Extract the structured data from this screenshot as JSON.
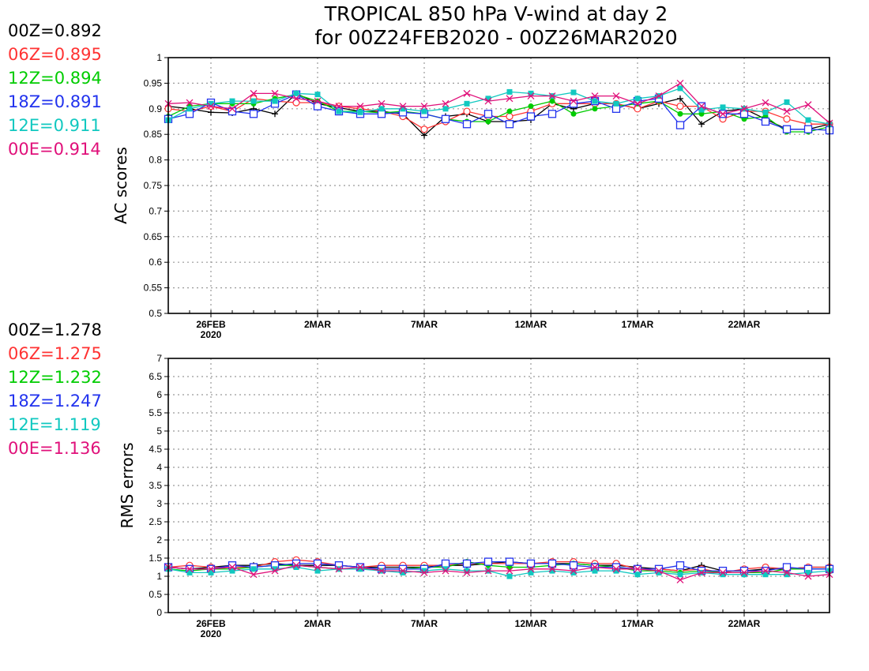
{
  "title_line1": "TROPICAL 850 hPa V-wind at day 2",
  "title_line2": "for 00Z24FEB2020 - 00Z26MAR2020",
  "colors": {
    "00Z": "#000000",
    "06Z": "#ff3333",
    "12Z": "#00cc00",
    "18Z": "#2233ee",
    "12E": "#11c8c0",
    "00E": "#e0107a"
  },
  "ac_scores": [
    {
      "label": "00Z=0.892",
      "color": "#000000"
    },
    {
      "label": "06Z=0.895",
      "color": "#ff3333"
    },
    {
      "label": "12Z=0.894",
      "color": "#00cc00"
    },
    {
      "label": "18Z=0.891",
      "color": "#2233ee"
    },
    {
      "label": "12E=0.911",
      "color": "#11c8c0"
    },
    {
      "label": "00E=0.914",
      "color": "#e0107a"
    }
  ],
  "rms_scores": [
    {
      "label": "00Z=1.278",
      "color": "#000000"
    },
    {
      "label": "06Z=1.275",
      "color": "#ff3333"
    },
    {
      "label": "12Z=1.232",
      "color": "#00cc00"
    },
    {
      "label": "18Z=1.247",
      "color": "#2233ee"
    },
    {
      "label": "12E=1.119",
      "color": "#11c8c0"
    },
    {
      "label": "00E=1.136",
      "color": "#e0107a"
    }
  ],
  "chart_data": [
    {
      "type": "line",
      "ylabel": "AC scores",
      "ylim": [
        0.5,
        1.0
      ],
      "yticks": [
        "0.5",
        "0.55",
        "0.6",
        "0.65",
        "0.7",
        "0.75",
        "0.8",
        "0.85",
        "0.9",
        "0.95",
        "1"
      ],
      "xlim": [
        24,
        55
      ],
      "xticks": [
        {
          "x": 26,
          "label": "26FEB",
          "sub": "2020"
        },
        {
          "x": 31,
          "label": "2MAR"
        },
        {
          "x": 36,
          "label": "7MAR"
        },
        {
          "x": 41,
          "label": "12MAR"
        },
        {
          "x": 46,
          "label": "17MAR"
        },
        {
          "x": 51,
          "label": "22MAR"
        }
      ],
      "grid": true,
      "series": [
        {
          "key": "00Z",
          "marker": "plus",
          "values": [
            0.905,
            0.9,
            0.893,
            0.892,
            0.9,
            0.89,
            0.93,
            0.91,
            0.902,
            0.895,
            0.895,
            0.89,
            0.848,
            0.885,
            0.89,
            0.875,
            0.875,
            0.878,
            0.91,
            0.9,
            0.91,
            0.91,
            0.9,
            0.91,
            0.92,
            0.87,
            0.895,
            0.9,
            0.88,
            0.86,
            0.86,
            0.87
          ]
        },
        {
          "key": "06Z",
          "marker": "circle",
          "values": [
            0.9,
            0.895,
            0.905,
            0.895,
            0.92,
            0.915,
            0.912,
            0.912,
            0.905,
            0.9,
            0.895,
            0.885,
            0.86,
            0.875,
            0.895,
            0.885,
            0.885,
            0.895,
            0.91,
            0.91,
            0.91,
            0.91,
            0.9,
            0.915,
            0.905,
            0.905,
            0.88,
            0.895,
            0.895,
            0.88,
            0.87,
            0.87
          ]
        },
        {
          "key": "12Z",
          "marker": "dot",
          "values": [
            0.885,
            0.905,
            0.91,
            0.91,
            0.91,
            0.92,
            0.928,
            0.915,
            0.895,
            0.895,
            0.892,
            0.895,
            0.89,
            0.88,
            0.875,
            0.875,
            0.895,
            0.905,
            0.915,
            0.89,
            0.9,
            0.905,
            0.91,
            0.915,
            0.89,
            0.89,
            0.895,
            0.88,
            0.885,
            0.855,
            0.855,
            0.865
          ]
        },
        {
          "key": "18Z",
          "marker": "square",
          "values": [
            0.88,
            0.89,
            0.912,
            0.895,
            0.89,
            0.91,
            0.928,
            0.905,
            0.895,
            0.89,
            0.89,
            0.893,
            0.89,
            0.88,
            0.87,
            0.89,
            0.87,
            0.885,
            0.89,
            0.91,
            0.915,
            0.9,
            0.915,
            0.92,
            0.868,
            0.905,
            0.89,
            0.89,
            0.875,
            0.86,
            0.86,
            0.858
          ]
        },
        {
          "key": "12E",
          "marker": "filledsquare",
          "values": [
            0.878,
            0.9,
            0.91,
            0.915,
            0.915,
            0.915,
            0.93,
            0.928,
            0.895,
            0.893,
            0.9,
            0.9,
            0.895,
            0.9,
            0.91,
            0.92,
            0.933,
            0.93,
            0.925,
            0.932,
            0.915,
            0.91,
            0.92,
            0.925,
            0.94,
            0.898,
            0.903,
            0.9,
            0.893,
            0.913,
            0.878,
            0.87
          ]
        },
        {
          "key": "00E",
          "marker": "x",
          "values": [
            0.91,
            0.912,
            0.905,
            0.9,
            0.93,
            0.93,
            0.92,
            0.915,
            0.905,
            0.905,
            0.91,
            0.905,
            0.905,
            0.91,
            0.93,
            0.915,
            0.92,
            0.925,
            0.925,
            0.915,
            0.925,
            0.925,
            0.91,
            0.925,
            0.95,
            0.905,
            0.89,
            0.9,
            0.912,
            0.895,
            0.908,
            0.872
          ]
        }
      ]
    },
    {
      "type": "line",
      "ylabel": "RMS errors",
      "ylim": [
        0,
        7
      ],
      "yticks": [
        "0",
        "0.5",
        "1",
        "1.5",
        "2",
        "2.5",
        "3",
        "3.5",
        "4",
        "4.5",
        "5",
        "5.5",
        "6",
        "6.5",
        "7"
      ],
      "xlim": [
        24,
        55
      ],
      "xticks": [
        {
          "x": 26,
          "label": "26FEB",
          "sub": "2020"
        },
        {
          "x": 31,
          "label": "2MAR"
        },
        {
          "x": 36,
          "label": "7MAR"
        },
        {
          "x": 41,
          "label": "12MAR"
        },
        {
          "x": 46,
          "label": "17MAR"
        },
        {
          "x": 51,
          "label": "22MAR"
        }
      ],
      "grid": true,
      "series": [
        {
          "key": "00Z",
          "marker": "plus",
          "values": [
            1.25,
            1.2,
            1.25,
            1.3,
            1.3,
            1.35,
            1.3,
            1.3,
            1.3,
            1.25,
            1.25,
            1.25,
            1.25,
            1.3,
            1.3,
            1.35,
            1.4,
            1.35,
            1.35,
            1.35,
            1.3,
            1.3,
            1.25,
            1.2,
            1.15,
            1.3,
            1.15,
            1.15,
            1.2,
            1.2,
            1.25,
            1.25
          ]
        },
        {
          "key": "06Z",
          "marker": "circle",
          "values": [
            1.25,
            1.3,
            1.25,
            1.25,
            1.25,
            1.4,
            1.45,
            1.4,
            1.3,
            1.25,
            1.3,
            1.3,
            1.3,
            1.3,
            1.35,
            1.35,
            1.35,
            1.35,
            1.4,
            1.4,
            1.35,
            1.35,
            1.2,
            1.2,
            1.15,
            1.2,
            1.1,
            1.2,
            1.25,
            1.2,
            1.25,
            1.25
          ]
        },
        {
          "key": "12Z",
          "marker": "dot",
          "values": [
            1.2,
            1.15,
            1.2,
            1.2,
            1.25,
            1.3,
            1.3,
            1.25,
            1.2,
            1.2,
            1.2,
            1.2,
            1.25,
            1.25,
            1.4,
            1.3,
            1.25,
            1.25,
            1.3,
            1.35,
            1.3,
            1.25,
            1.15,
            1.15,
            1.1,
            1.15,
            1.1,
            1.1,
            1.1,
            1.2,
            1.2,
            1.2
          ]
        },
        {
          "key": "18Z",
          "marker": "square",
          "values": [
            1.25,
            1.2,
            1.2,
            1.3,
            1.25,
            1.3,
            1.35,
            1.35,
            1.3,
            1.25,
            1.2,
            1.2,
            1.2,
            1.35,
            1.35,
            1.4,
            1.4,
            1.35,
            1.35,
            1.3,
            1.25,
            1.25,
            1.2,
            1.2,
            1.3,
            1.15,
            1.15,
            1.15,
            1.15,
            1.25,
            1.2,
            1.2
          ]
        },
        {
          "key": "12E",
          "marker": "filledsquare",
          "values": [
            1.2,
            1.1,
            1.1,
            1.15,
            1.2,
            1.2,
            1.25,
            1.15,
            1.2,
            1.2,
            1.15,
            1.1,
            1.15,
            1.2,
            1.15,
            1.15,
            1.0,
            1.1,
            1.15,
            1.1,
            1.15,
            1.15,
            1.05,
            1.1,
            1.05,
            1.1,
            1.05,
            1.05,
            1.05,
            1.05,
            1.1,
            1.15
          ]
        },
        {
          "key": "00E",
          "marker": "x",
          "values": [
            1.25,
            1.2,
            1.2,
            1.25,
            1.05,
            1.15,
            1.3,
            1.25,
            1.2,
            1.25,
            1.15,
            1.15,
            1.1,
            1.15,
            1.1,
            1.15,
            1.15,
            1.2,
            1.2,
            1.15,
            1.25,
            1.2,
            1.2,
            1.15,
            0.9,
            1.1,
            1.1,
            1.1,
            1.15,
            1.1,
            1.0,
            1.05
          ]
        }
      ]
    }
  ]
}
